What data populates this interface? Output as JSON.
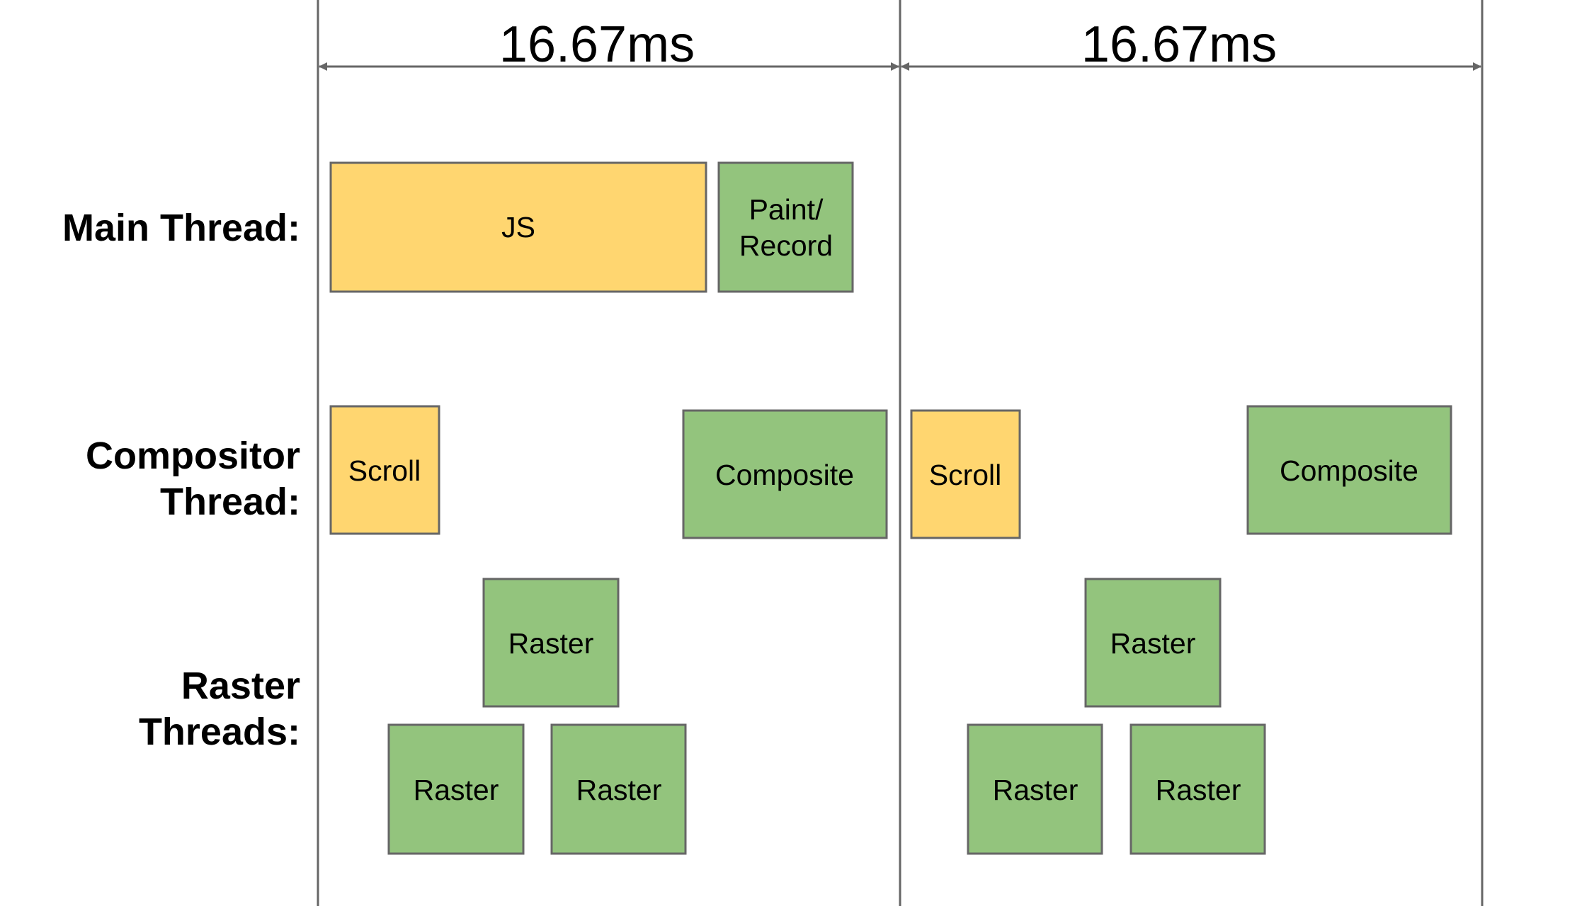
{
  "colors": {
    "line": "#666666",
    "yellow_fill": "#ffd670",
    "green_fill": "#93c47d",
    "block_stroke": "#666666",
    "text": "#000000"
  },
  "frames": [
    {
      "label": "16.67ms"
    },
    {
      "label": "16.67ms"
    }
  ],
  "rows": {
    "main": {
      "label_lines": [
        "Main Thread:"
      ]
    },
    "compositor": {
      "label_lines": [
        "Compositor",
        "Thread:"
      ]
    },
    "raster": {
      "label_lines": [
        "Raster",
        "Threads:"
      ]
    }
  },
  "blocks": {
    "js": {
      "label_lines": [
        "JS"
      ],
      "color": "yellow"
    },
    "paint_record": {
      "label_lines": [
        "Paint/",
        "Record"
      ],
      "color": "green"
    },
    "scroll_1": {
      "label_lines": [
        "Scroll"
      ],
      "color": "yellow"
    },
    "composite_1": {
      "label_lines": [
        "Composite"
      ],
      "color": "green"
    },
    "scroll_2": {
      "label_lines": [
        "Scroll"
      ],
      "color": "yellow"
    },
    "composite_2": {
      "label_lines": [
        "Composite"
      ],
      "color": "green"
    },
    "raster_1_top": {
      "label_lines": [
        "Raster"
      ],
      "color": "green"
    },
    "raster_1_left": {
      "label_lines": [
        "Raster"
      ],
      "color": "green"
    },
    "raster_1_right": {
      "label_lines": [
        "Raster"
      ],
      "color": "green"
    },
    "raster_2_top": {
      "label_lines": [
        "Raster"
      ],
      "color": "green"
    },
    "raster_2_left": {
      "label_lines": [
        "Raster"
      ],
      "color": "green"
    },
    "raster_2_right": {
      "label_lines": [
        "Raster"
      ],
      "color": "green"
    }
  }
}
